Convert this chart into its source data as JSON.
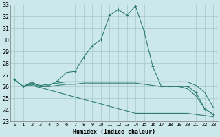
{
  "xlabel": "Humidex (Indice chaleur)",
  "x": [
    0,
    1,
    2,
    3,
    4,
    5,
    6,
    7,
    8,
    9,
    10,
    11,
    12,
    13,
    14,
    15,
    16,
    17,
    18,
    19,
    20,
    21,
    22,
    23
  ],
  "line1": [
    26.6,
    26.0,
    26.4,
    26.0,
    26.1,
    26.5,
    27.2,
    27.3,
    28.5,
    29.5,
    30.0,
    32.1,
    32.6,
    32.1,
    32.9,
    30.7,
    27.7,
    26.0,
    26.0,
    26.0,
    26.0,
    25.5,
    24.1,
    23.6
  ],
  "line2": [
    26.6,
    26.0,
    26.3,
    26.1,
    26.2,
    26.3,
    26.4,
    26.4,
    26.4,
    26.4,
    26.4,
    26.4,
    26.4,
    26.4,
    26.4,
    26.4,
    26.4,
    26.4,
    26.4,
    26.4,
    26.4,
    26.1,
    25.5,
    24.2
  ],
  "line3": [
    26.6,
    26.0,
    26.1,
    25.9,
    25.7,
    25.5,
    25.3,
    25.1,
    24.9,
    24.7,
    24.5,
    24.3,
    24.1,
    23.9,
    23.7,
    23.7,
    23.7,
    23.7,
    23.7,
    23.7,
    23.7,
    23.6,
    23.5,
    23.4
  ],
  "line4": [
    26.6,
    26.0,
    26.2,
    26.0,
    26.0,
    26.1,
    26.2,
    26.2,
    26.3,
    26.3,
    26.3,
    26.3,
    26.3,
    26.3,
    26.3,
    26.2,
    26.1,
    26.0,
    26.0,
    26.0,
    25.8,
    25.2,
    24.1,
    23.6
  ],
  "color": "#2d7d6e",
  "bg_color": "#cde8ea",
  "grid_color": "#aacdd0",
  "ylim": [
    23,
    33
  ],
  "yticks": [
    23,
    24,
    25,
    26,
    27,
    28,
    29,
    30,
    31,
    32,
    33
  ],
  "xlim": [
    -0.5,
    23.5
  ],
  "xticks": [
    0,
    1,
    2,
    3,
    4,
    5,
    6,
    7,
    8,
    9,
    10,
    11,
    12,
    13,
    14,
    15,
    16,
    17,
    18,
    19,
    20,
    21,
    22,
    23
  ]
}
